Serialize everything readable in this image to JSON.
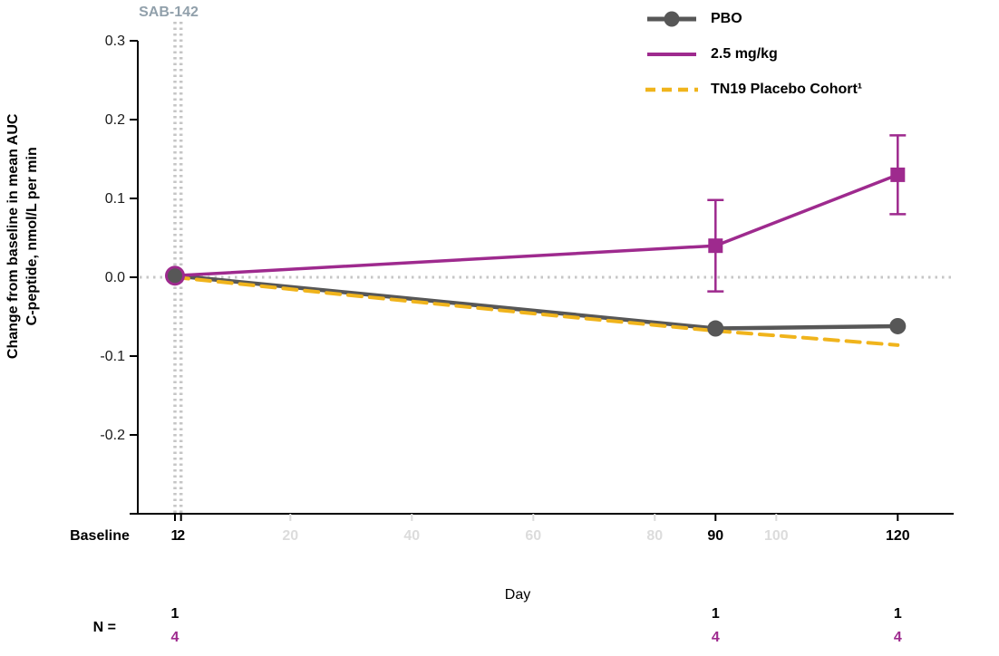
{
  "colors": {
    "pbo": "#575757",
    "dose": "#9e2a8e",
    "tn19": "#f0b41c",
    "axis": "#000000",
    "tick_label": "#1a1a1a",
    "muted_tick": "#dcdcdc",
    "guide": "#c6c6c6",
    "slate": "#91a0ab"
  },
  "labels": {
    "sab_annotation": "SAB-142",
    "y_axis_line1": "Change from baseline in mean AUC",
    "y_axis_line2": "C-peptide, nmol/L per min",
    "x_axis": "Day",
    "baseline": "Baseline",
    "n_label": "N ="
  },
  "legend": {
    "items": [
      {
        "name": "PBO"
      },
      {
        "name": "2.5 mg/kg"
      },
      {
        "name": "TN19 Placebo Cohort¹"
      }
    ]
  },
  "chart_data": {
    "type": "line",
    "title": "",
    "xlabel": "Day",
    "ylabel": "Change from baseline in mean AUC C-peptide, nmol/L per min",
    "xlim": [
      1,
      120
    ],
    "ylim": [
      -0.3,
      0.3
    ],
    "grid": false,
    "legend_position": "top-right",
    "reference_line_y": 0.0,
    "vline_days": [
      1,
      2
    ],
    "vline_annotation": "SAB-142",
    "yticks": [
      {
        "v": 0.3,
        "label": "0.3"
      },
      {
        "v": 0.2,
        "label": "0.2"
      },
      {
        "v": 0.1,
        "label": "0.1"
      },
      {
        "v": 0.0,
        "label": "0.0"
      },
      {
        "v": -0.1,
        "label": "-0.1"
      },
      {
        "v": -0.2,
        "label": "-0.2"
      },
      {
        "v": -0.3,
        "label": ""
      }
    ],
    "xticks_major": [
      {
        "day": 1,
        "label": "1"
      },
      {
        "day": 2,
        "label": "2"
      },
      {
        "day": 90,
        "label": "90"
      },
      {
        "day": 120,
        "label": "120"
      }
    ],
    "xticks_minor": [
      {
        "day": 20,
        "label": "20"
      },
      {
        "day": 40,
        "label": "40"
      },
      {
        "day": 60,
        "label": "60"
      },
      {
        "day": 80,
        "label": "80"
      },
      {
        "day": 100,
        "label": "100"
      }
    ],
    "series": [
      {
        "name": "PBO",
        "color_key": "pbo",
        "style": "solid",
        "line_width": 4.5,
        "x": [
          1,
          90,
          120
        ],
        "y": [
          0.002,
          -0.065,
          -0.062
        ],
        "point_markers": [
          "circle",
          "circle",
          "circle"
        ],
        "marker_sizes": [
          8,
          9,
          9
        ]
      },
      {
        "name": "2.5 mg/kg",
        "color_key": "dose",
        "style": "solid",
        "line_width": 3.5,
        "x": [
          1,
          90,
          120
        ],
        "y": [
          0.002,
          0.04,
          0.13
        ],
        "error": [
          0,
          0.058,
          0.05
        ],
        "point_markers": [
          "circle",
          "square",
          "square"
        ],
        "marker_sizes": [
          11,
          8,
          8
        ]
      },
      {
        "name": "TN19 Placebo Cohort¹",
        "color_key": "tn19",
        "style": "dashed",
        "line_width": 4,
        "x": [
          1,
          30,
          60,
          90,
          120
        ],
        "y": [
          0.0,
          -0.023,
          -0.046,
          -0.068,
          -0.086
        ],
        "point_markers": [],
        "marker_sizes": []
      }
    ],
    "n_row": {
      "days": [
        1,
        90,
        120
      ],
      "pbo_counts": [
        "1",
        "1",
        "1"
      ],
      "dose_counts": [
        "4",
        "4",
        "4"
      ]
    }
  }
}
